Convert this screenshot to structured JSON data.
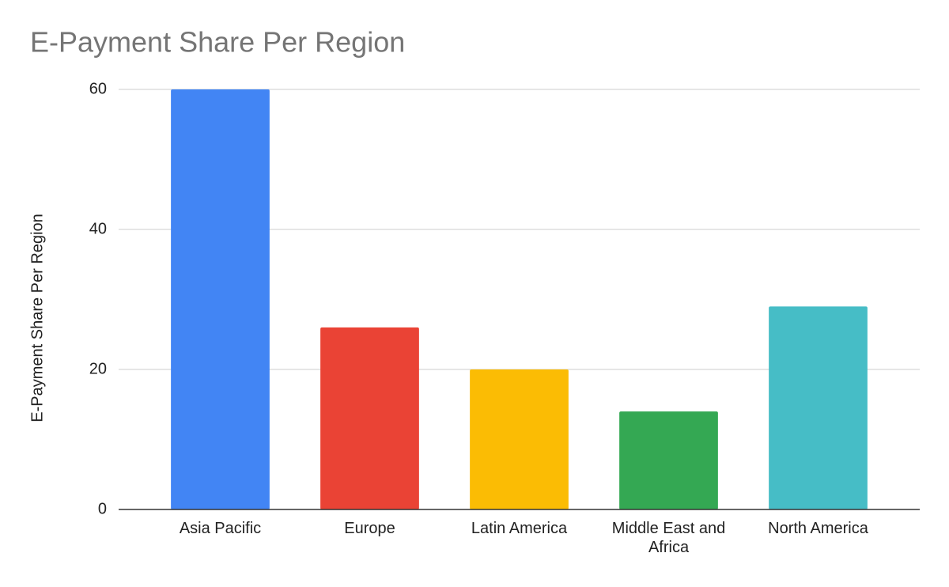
{
  "chart_data": {
    "type": "bar",
    "title": "E-Payment Share Per Region",
    "y_label": "E-Payment Share Per Region",
    "categories": [
      "Asia Pacific",
      "Europe",
      "Latin America",
      "Middle East and Africa",
      "North America"
    ],
    "values": [
      60,
      26,
      20,
      14,
      29
    ],
    "colors": [
      "#4285f4",
      "#ea4335",
      "#fbbc04",
      "#34a853",
      "#46bdc6"
    ],
    "ylim": [
      0,
      60
    ],
    "yticks": [
      0,
      20,
      40,
      60
    ],
    "grid": true
  }
}
